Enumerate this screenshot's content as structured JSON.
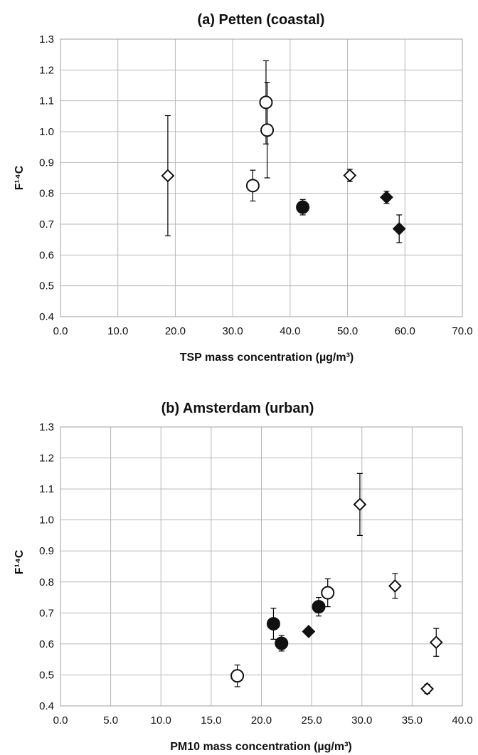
{
  "chart_data": [
    {
      "type": "scatter",
      "title": "(a) Petten (coastal)",
      "xlabel": "TSP mass concentration (µg/m³)",
      "ylabel": "F¹⁴C",
      "xlim": [
        0,
        70
      ],
      "ylim": [
        0.4,
        1.3
      ],
      "x_ticks": [
        "0.0",
        "10.0",
        "20.0",
        "30.0",
        "40.0",
        "50.0",
        "60.0",
        "70.0"
      ],
      "y_ticks": [
        "0.4",
        "0.5",
        "0.6",
        "0.7",
        "0.8",
        "0.9",
        "1.0",
        "1.1",
        "1.2",
        "1.3"
      ],
      "grid": true,
      "points": [
        {
          "x": 18.7,
          "y": 0.857,
          "err": 0.195,
          "marker": "diamond-open"
        },
        {
          "x": 33.5,
          "y": 0.825,
          "err": 0.05,
          "marker": "circle-open"
        },
        {
          "x": 35.8,
          "y": 1.095,
          "err": 0.135,
          "marker": "circle-open"
        },
        {
          "x": 36.0,
          "y": 1.005,
          "err": 0.155,
          "marker": "circle-open"
        },
        {
          "x": 42.2,
          "y": 0.755,
          "err": 0.025,
          "marker": "circle-filled"
        },
        {
          "x": 50.4,
          "y": 0.858,
          "err": 0.02,
          "marker": "diamond-open"
        },
        {
          "x": 56.8,
          "y": 0.787,
          "err": 0.02,
          "marker": "diamond-filled"
        },
        {
          "x": 59.0,
          "y": 0.685,
          "err": 0.045,
          "marker": "diamond-filled"
        }
      ]
    },
    {
      "type": "scatter",
      "title": "(b) Amsterdam (urban)",
      "xlabel": "PM10 mass concentration (µg/m³)",
      "ylabel": "F¹⁴C",
      "xlim": [
        0,
        40
      ],
      "ylim": [
        0.4,
        1.3
      ],
      "x_ticks": [
        "0.0",
        "5.0",
        "10.0",
        "15.0",
        "20.0",
        "25.0",
        "30.0",
        "35.0",
        "40.0"
      ],
      "y_ticks": [
        "0.4",
        "0.5",
        "0.6",
        "0.7",
        "0.8",
        "0.9",
        "1.0",
        "1.1",
        "1.2",
        "1.3"
      ],
      "grid": true,
      "points": [
        {
          "x": 17.6,
          "y": 0.497,
          "err": 0.035,
          "marker": "circle-open"
        },
        {
          "x": 21.2,
          "y": 0.665,
          "err": 0.05,
          "marker": "circle-filled"
        },
        {
          "x": 22.0,
          "y": 0.602,
          "err": 0.025,
          "marker": "circle-filled"
        },
        {
          "x": 24.7,
          "y": 0.64,
          "err": 0.0,
          "marker": "diamond-filled"
        },
        {
          "x": 25.7,
          "y": 0.72,
          "err": 0.03,
          "marker": "circle-filled"
        },
        {
          "x": 26.6,
          "y": 0.765,
          "err": 0.045,
          "marker": "circle-open"
        },
        {
          "x": 29.8,
          "y": 1.05,
          "err": 0.1,
          "marker": "diamond-open"
        },
        {
          "x": 33.3,
          "y": 0.787,
          "err": 0.04,
          "marker": "diamond-open"
        },
        {
          "x": 36.5,
          "y": 0.455,
          "err": 0.015,
          "marker": "diamond-open"
        },
        {
          "x": 37.4,
          "y": 0.605,
          "err": 0.045,
          "marker": "diamond-open"
        }
      ]
    }
  ]
}
